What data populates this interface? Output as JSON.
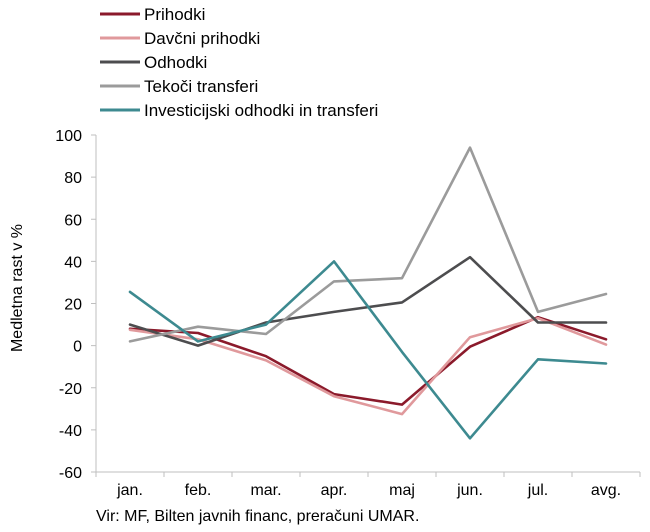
{
  "chart_data": {
    "type": "line",
    "categories": [
      "jan.",
      "feb.",
      "mar.",
      "apr.",
      "maj",
      "jun.",
      "jul.",
      "avg."
    ],
    "ylabel": "Medletna rast v %",
    "ylim": [
      -60,
      100
    ],
    "yticks": [
      -60,
      -40,
      -20,
      0,
      20,
      40,
      60,
      80,
      100
    ],
    "grid": false,
    "legend": "top-left",
    "series": [
      {
        "name": "Prihodki",
        "color": "#8b1a2b",
        "values": [
          8,
          6,
          -5,
          -23,
          -28,
          -0.5,
          13.5,
          3
        ]
      },
      {
        "name": "Davčni prihodki",
        "color": "#e0999c",
        "values": [
          7.5,
          3,
          -7,
          -24,
          -32.5,
          4,
          13,
          0.5
        ]
      },
      {
        "name": "Odhodki",
        "color": "#4d4d4f",
        "values": [
          10,
          0,
          11,
          16,
          20.5,
          42,
          11,
          11
        ]
      },
      {
        "name": "Tekoči transferi",
        "color": "#9b9b9b",
        "values": [
          2,
          9,
          5.5,
          30.5,
          32,
          94,
          16,
          24.5
        ]
      },
      {
        "name": "Investicijski odhodki in transferi",
        "color": "#3d8a90",
        "values": [
          25.5,
          2,
          10,
          40,
          -3,
          -44,
          -6.5,
          -8.5
        ]
      }
    ],
    "source": "Vir: MF, Bilten javnih financ, preračuni UMAR."
  }
}
